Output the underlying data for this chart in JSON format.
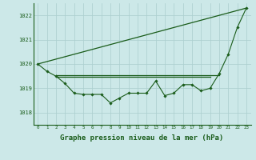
{
  "hours": [
    0,
    1,
    2,
    3,
    4,
    5,
    6,
    7,
    8,
    9,
    10,
    11,
    12,
    13,
    14,
    15,
    16,
    17,
    18,
    19,
    20,
    21,
    22,
    23
  ],
  "pressure_main": [
    1020.0,
    1019.7,
    1019.5,
    1019.2,
    1018.8,
    1018.75,
    1018.75,
    1018.75,
    1018.4,
    1018.6,
    1018.8,
    1018.8,
    1018.8,
    1019.3,
    1018.7,
    1018.8,
    1019.15,
    1019.15,
    1018.9,
    1019.0,
    1019.6,
    1020.4,
    1021.5,
    1022.3
  ],
  "pressure_diagonal": [
    1020.0,
    1022.3
  ],
  "pressure_diagonal_hours": [
    0,
    23
  ],
  "pressure_flat1_hours": [
    2,
    20
  ],
  "pressure_flat1_vals": [
    1019.53,
    1019.53
  ],
  "pressure_flat2_hours": [
    2,
    19
  ],
  "pressure_flat2_vals": [
    1019.47,
    1019.47
  ],
  "ylim": [
    1017.5,
    1022.5
  ],
  "yticks": [
    1018,
    1019,
    1020,
    1021,
    1022
  ],
  "xticks": [
    0,
    1,
    2,
    3,
    4,
    5,
    6,
    7,
    8,
    9,
    10,
    11,
    12,
    13,
    14,
    15,
    16,
    17,
    18,
    19,
    20,
    21,
    22,
    23
  ],
  "bg_color": "#cce8e8",
  "line_color": "#1a5c1a",
  "grid_color": "#aacece",
  "xlabel": "Graphe pression niveau de la mer (hPa)",
  "xlabel_fontsize": 6.5
}
